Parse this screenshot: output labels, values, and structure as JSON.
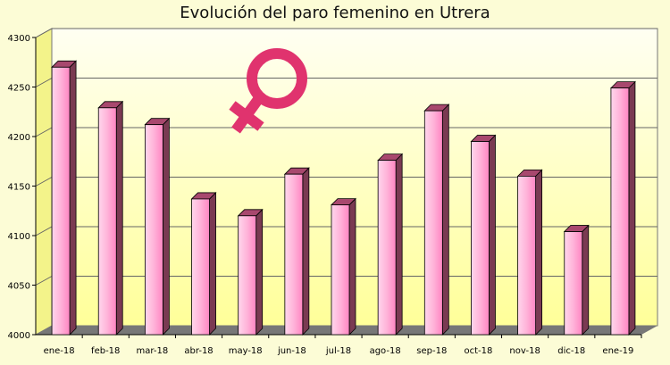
{
  "chart_data": {
    "type": "bar",
    "title": "Evolución del paro femenino en Utrera",
    "categories": [
      "ene-18",
      "feb-18",
      "mar-18",
      "abr-18",
      "may-18",
      "jun-18",
      "jul-18",
      "ago-18",
      "sep-18",
      "oct-18",
      "nov-18",
      "dic-18",
      "ene-19"
    ],
    "values": [
      4270,
      4229,
      4212,
      4137,
      4120,
      4162,
      4131,
      4176,
      4226,
      4195,
      4160,
      4104,
      4249
    ],
    "xlabel": "",
    "ylabel": "",
    "ylim": [
      4000,
      4300
    ],
    "yticks": [
      4000,
      4050,
      4100,
      4150,
      4200,
      4250,
      4300
    ],
    "grid": true,
    "style": "3d",
    "colors": {
      "background": "#fcfcd6",
      "plot_back": "#ffff99",
      "bar_front": "#ff99cc",
      "bar_side": "#7a3a52",
      "floor": "#777777",
      "symbol": "#e0336e"
    },
    "decoration": "female-symbol-icon"
  }
}
